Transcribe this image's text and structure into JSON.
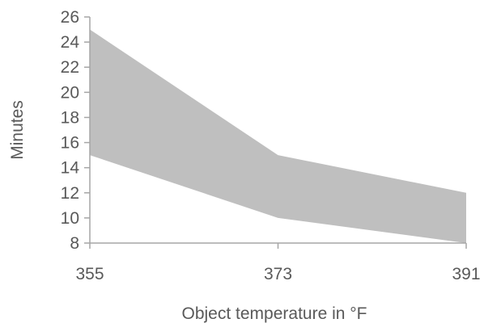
{
  "chart_data": {
    "type": "area",
    "xlabel": "Object temperature in °F",
    "ylabel": "Minutes",
    "x": [
      355,
      373,
      391
    ],
    "x_tick_labels": [
      "355",
      "373",
      "391"
    ],
    "ylim": [
      8,
      26
    ],
    "y_ticks": [
      8,
      10,
      12,
      14,
      16,
      18,
      20,
      22,
      24,
      26
    ],
    "y_tick_labels": [
      "8",
      "10",
      "12",
      "14",
      "16",
      "18",
      "20",
      "22",
      "24",
      "26"
    ],
    "series": [
      {
        "values_lower": [
          15,
          10,
          8
        ],
        "values_upper": [
          25,
          15,
          12
        ]
      }
    ],
    "fill_color": "#bfbfbf",
    "axis_color": "#a6a6a6",
    "text_color": "#595959",
    "grid": false
  }
}
